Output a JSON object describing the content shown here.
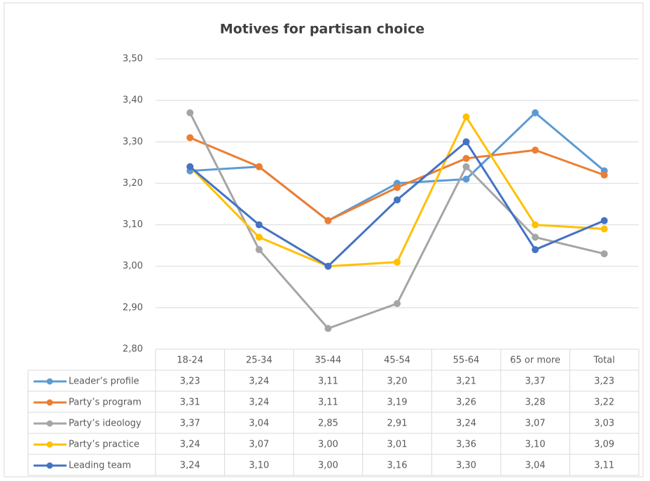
{
  "chart_data": {
    "type": "line",
    "title": "Motives for partisan choice",
    "categories": [
      "18-24",
      "25-34",
      "35-44",
      "45-54",
      "55-64",
      "65 or more",
      "Total"
    ],
    "ylim": [
      2.8,
      3.5
    ],
    "yticks": [
      {
        "value": 2.8,
        "label": "2,80"
      },
      {
        "value": 2.9,
        "label": "2,90"
      },
      {
        "value": 3.0,
        "label": "3,00"
      },
      {
        "value": 3.1,
        "label": "3,10"
      },
      {
        "value": 3.2,
        "label": "3,20"
      },
      {
        "value": 3.3,
        "label": "3,30"
      },
      {
        "value": 3.4,
        "label": "3,40"
      },
      {
        "value": 3.5,
        "label": "3,50"
      }
    ],
    "grid": true,
    "series": [
      {
        "name": "Leader’s profile",
        "color": "#5b9bd5",
        "values": [
          3.23,
          3.24,
          3.11,
          3.2,
          3.21,
          3.37,
          3.23
        ],
        "value_labels": [
          "3,23",
          "3,24",
          "3,11",
          "3,20",
          "3,21",
          "3,37",
          "3,23"
        ]
      },
      {
        "name": "Party’s program",
        "color": "#ed7d31",
        "values": [
          3.31,
          3.24,
          3.11,
          3.19,
          3.26,
          3.28,
          3.22
        ],
        "value_labels": [
          "3,31",
          "3,24",
          "3,11",
          "3,19",
          "3,26",
          "3,28",
          "3,22"
        ]
      },
      {
        "name": "Party’s ideology",
        "color": "#a5a5a5",
        "values": [
          3.37,
          3.04,
          2.85,
          2.91,
          3.24,
          3.07,
          3.03
        ],
        "value_labels": [
          "3,37",
          "3,04",
          "2,85",
          "2,91",
          "3,24",
          "3,07",
          "3,03"
        ]
      },
      {
        "name": "Party’s practice",
        "color": "#ffc000",
        "values": [
          3.24,
          3.07,
          3.0,
          3.01,
          3.36,
          3.1,
          3.09
        ],
        "value_labels": [
          "3,24",
          "3,07",
          "3,00",
          "3,01",
          "3,36",
          "3,10",
          "3,09"
        ]
      },
      {
        "name": "Leading team",
        "color": "#4472c4",
        "values": [
          3.24,
          3.1,
          3.0,
          3.16,
          3.3,
          3.04,
          3.11
        ],
        "value_labels": [
          "3,24",
          "3,10",
          "3,00",
          "3,16",
          "3,30",
          "3,04",
          "3,11"
        ]
      }
    ]
  }
}
